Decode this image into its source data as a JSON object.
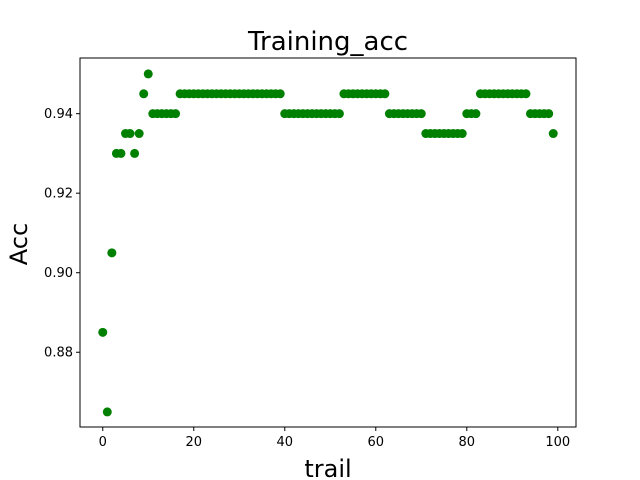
{
  "chart_data": {
    "type": "scatter",
    "title": "Training_acc",
    "xlabel": "trail",
    "ylabel": "Acc",
    "xlim": [
      -5,
      104
    ],
    "ylim": [
      0.8612,
      0.954
    ],
    "grid": false,
    "marker_color": "#008000",
    "xticks": [
      0,
      20,
      40,
      60,
      80,
      100
    ],
    "xtick_labels": [
      "0",
      "20",
      "40",
      "60",
      "80",
      "100"
    ],
    "yticks": [
      0.88,
      0.9,
      0.92,
      0.94
    ],
    "ytick_labels": [
      "0.88",
      "0.90",
      "0.92",
      "0.94"
    ],
    "x": [
      0,
      1,
      2,
      3,
      4,
      5,
      6,
      7,
      8,
      9,
      10,
      11,
      12,
      13,
      14,
      15,
      16,
      17,
      18,
      19,
      20,
      21,
      22,
      23,
      24,
      25,
      26,
      27,
      28,
      29,
      30,
      31,
      32,
      33,
      34,
      35,
      36,
      37,
      38,
      39,
      40,
      41,
      42,
      43,
      44,
      45,
      46,
      47,
      48,
      49,
      50,
      51,
      52,
      53,
      54,
      55,
      56,
      57,
      58,
      59,
      60,
      61,
      62,
      63,
      64,
      65,
      66,
      67,
      68,
      69,
      70,
      71,
      72,
      73,
      74,
      75,
      76,
      77,
      78,
      79,
      80,
      81,
      82,
      83,
      84,
      85,
      86,
      87,
      88,
      89,
      90,
      91,
      92,
      93,
      94,
      95,
      96,
      97,
      98,
      99
    ],
    "y": [
      0.885,
      0.865,
      0.905,
      0.93,
      0.93,
      0.935,
      0.935,
      0.93,
      0.935,
      0.945,
      0.95,
      0.94,
      0.94,
      0.94,
      0.94,
      0.94,
      0.94,
      0.945,
      0.945,
      0.945,
      0.945,
      0.945,
      0.945,
      0.945,
      0.945,
      0.945,
      0.945,
      0.945,
      0.945,
      0.945,
      0.945,
      0.945,
      0.945,
      0.945,
      0.945,
      0.945,
      0.945,
      0.945,
      0.945,
      0.945,
      0.94,
      0.94,
      0.94,
      0.94,
      0.94,
      0.94,
      0.94,
      0.94,
      0.94,
      0.94,
      0.94,
      0.94,
      0.94,
      0.945,
      0.945,
      0.945,
      0.945,
      0.945,
      0.945,
      0.945,
      0.945,
      0.945,
      0.945,
      0.94,
      0.94,
      0.94,
      0.94,
      0.94,
      0.94,
      0.94,
      0.94,
      0.935,
      0.935,
      0.935,
      0.935,
      0.935,
      0.935,
      0.935,
      0.935,
      0.935,
      0.94,
      0.94,
      0.94,
      0.945,
      0.945,
      0.945,
      0.945,
      0.945,
      0.945,
      0.945,
      0.945,
      0.945,
      0.945,
      0.945,
      0.94,
      0.94,
      0.94,
      0.94,
      0.94,
      0.935
    ]
  }
}
